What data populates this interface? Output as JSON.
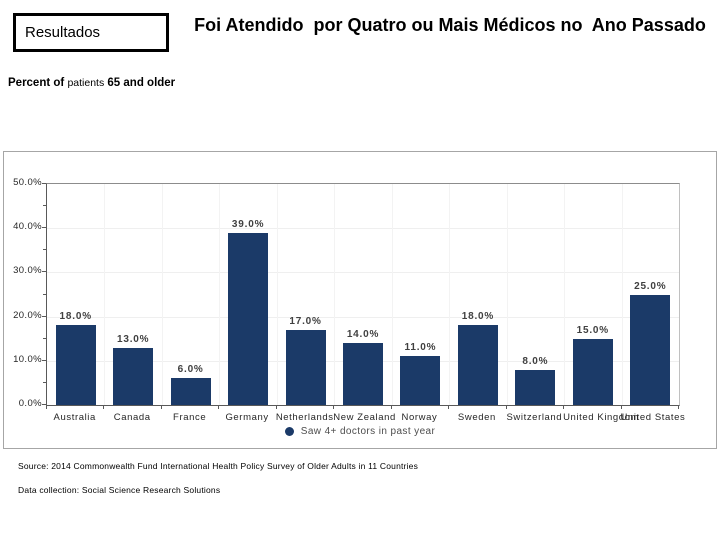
{
  "slide": {
    "resultados_label": "Resultados",
    "title": "Foi Atendido  por Quatro ou Mais Médicos no  Ano Passado",
    "subtitle_prefix": "Percent of ",
    "subtitle_mid": "patients",
    "subtitle_suffix": " 65 and older",
    "source_line1": "Source: 2014 Commonwealth Fund International Health Policy Survey of Older Adults in 11 Countries",
    "source_line2": "Data collection: Social Science Research Solutions"
  },
  "chart_data": {
    "type": "bar",
    "categories": [
      "Australia",
      "Canada",
      "France",
      "Germany",
      "Netherlands",
      "New Zealand",
      "Norway",
      "Sweden",
      "Switzerland",
      "United Kingdom",
      "United States"
    ],
    "values": [
      18.0,
      13.0,
      6.0,
      39.0,
      17.0,
      14.0,
      11.0,
      18.0,
      8.0,
      15.0,
      25.0
    ],
    "value_labels": [
      "18.0%",
      "13.0%",
      "6.0%",
      "39.0%",
      "17.0%",
      "14.0%",
      "11.0%",
      "18.0%",
      "8.0%",
      "15.0%",
      "25.0%"
    ],
    "title": "Foi Atendido por Quatro ou Mais Médicos no Ano Passado",
    "xlabel": "",
    "ylabel": "Percent of patients 65 and older",
    "ylim": [
      0,
      50
    ],
    "y_major_step": 10,
    "y_minor_step": 5,
    "y_tick_labels": [
      "0.0%",
      "10.0%",
      "20.0%",
      "30.0%",
      "40.0%",
      "50.0%"
    ],
    "grid": "faint horizontal and vertical",
    "legend": [
      {
        "label": "Saw 4+ doctors in past year",
        "color": "#1b3a68"
      }
    ],
    "legend_position": "bottom-center",
    "bar_color": "#1b3a68"
  },
  "colors": {
    "bar": "#1b3a68",
    "axis": "#595959",
    "frame_border": "#a6a6a6",
    "grid": "#efefef",
    "text": "#000000",
    "tick_text": "#262626",
    "value_text": "#404040"
  }
}
